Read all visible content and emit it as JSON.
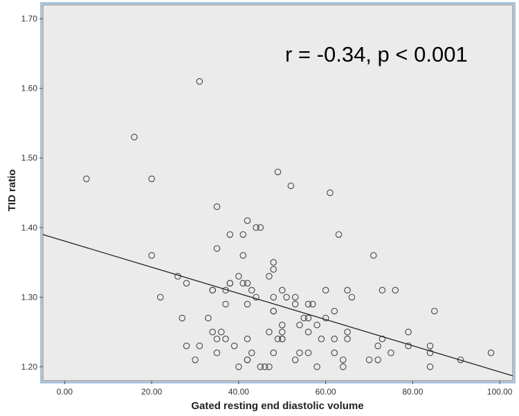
{
  "chart_data": {
    "type": "scatter",
    "title": "",
    "xlabel": "Gated resting end diastolic volume",
    "ylabel": "TID ratio",
    "annotation": "r = -0.34, p < 0.001",
    "xlim": [
      -5,
      103
    ],
    "ylim": [
      1.18,
      1.72
    ],
    "x_ticks": [
      "0.00",
      "20.00",
      "40.00",
      "60.00",
      "80.00",
      "100.00"
    ],
    "y_ticks": [
      "1.20",
      "1.30",
      "1.40",
      "1.50",
      "1.60",
      "1.70"
    ],
    "grid": false,
    "colors": {
      "plot_background": "#ebebeb",
      "frame": "#a8c4de",
      "marker": "#444444",
      "line": "#222222"
    },
    "regression_line": {
      "x": [
        -5,
        103
      ],
      "y": [
        1.39,
        1.187
      ]
    },
    "points": [
      {
        "x": 5,
        "y": 1.47
      },
      {
        "x": 16,
        "y": 1.53
      },
      {
        "x": 20,
        "y": 1.47
      },
      {
        "x": 31,
        "y": 1.61
      },
      {
        "x": 20,
        "y": 1.36
      },
      {
        "x": 22,
        "y": 1.3
      },
      {
        "x": 26,
        "y": 1.33
      },
      {
        "x": 27,
        "y": 1.27
      },
      {
        "x": 28,
        "y": 1.32
      },
      {
        "x": 28,
        "y": 1.23
      },
      {
        "x": 30,
        "y": 1.21
      },
      {
        "x": 31,
        "y": 1.23
      },
      {
        "x": 33,
        "y": 1.27
      },
      {
        "x": 34,
        "y": 1.31
      },
      {
        "x": 34,
        "y": 1.31
      },
      {
        "x": 34,
        "y": 1.25
      },
      {
        "x": 35,
        "y": 1.43
      },
      {
        "x": 35,
        "y": 1.37
      },
      {
        "x": 35,
        "y": 1.24
      },
      {
        "x": 35,
        "y": 1.22
      },
      {
        "x": 36,
        "y": 1.25
      },
      {
        "x": 37,
        "y": 1.31
      },
      {
        "x": 37,
        "y": 1.29
      },
      {
        "x": 37,
        "y": 1.24
      },
      {
        "x": 38,
        "y": 1.39
      },
      {
        "x": 38,
        "y": 1.32
      },
      {
        "x": 38,
        "y": 1.32
      },
      {
        "x": 39,
        "y": 1.23
      },
      {
        "x": 40,
        "y": 1.33
      },
      {
        "x": 40,
        "y": 1.2
      },
      {
        "x": 41,
        "y": 1.39
      },
      {
        "x": 41,
        "y": 1.36
      },
      {
        "x": 41,
        "y": 1.32
      },
      {
        "x": 42,
        "y": 1.41
      },
      {
        "x": 42,
        "y": 1.32
      },
      {
        "x": 42,
        "y": 1.29
      },
      {
        "x": 42,
        "y": 1.24
      },
      {
        "x": 42,
        "y": 1.21
      },
      {
        "x": 42,
        "y": 1.21
      },
      {
        "x": 43,
        "y": 1.31
      },
      {
        "x": 43,
        "y": 1.22
      },
      {
        "x": 44,
        "y": 1.4
      },
      {
        "x": 44,
        "y": 1.3
      },
      {
        "x": 45,
        "y": 1.4
      },
      {
        "x": 45,
        "y": 1.2
      },
      {
        "x": 46,
        "y": 1.2
      },
      {
        "x": 47,
        "y": 1.33
      },
      {
        "x": 47,
        "y": 1.25
      },
      {
        "x": 47,
        "y": 1.2
      },
      {
        "x": 48,
        "y": 1.35
      },
      {
        "x": 48,
        "y": 1.34
      },
      {
        "x": 48,
        "y": 1.3
      },
      {
        "x": 48,
        "y": 1.28
      },
      {
        "x": 48,
        "y": 1.28
      },
      {
        "x": 48,
        "y": 1.22
      },
      {
        "x": 49,
        "y": 1.48
      },
      {
        "x": 49,
        "y": 1.24
      },
      {
        "x": 50,
        "y": 1.31
      },
      {
        "x": 50,
        "y": 1.26
      },
      {
        "x": 50,
        "y": 1.25
      },
      {
        "x": 50,
        "y": 1.24
      },
      {
        "x": 50,
        "y": 1.24
      },
      {
        "x": 51,
        "y": 1.3
      },
      {
        "x": 52,
        "y": 1.46
      },
      {
        "x": 53,
        "y": 1.3
      },
      {
        "x": 53,
        "y": 1.29
      },
      {
        "x": 53,
        "y": 1.21
      },
      {
        "x": 54,
        "y": 1.26
      },
      {
        "x": 54,
        "y": 1.22
      },
      {
        "x": 55,
        "y": 1.27
      },
      {
        "x": 56,
        "y": 1.29
      },
      {
        "x": 56,
        "y": 1.27
      },
      {
        "x": 56,
        "y": 1.25
      },
      {
        "x": 56,
        "y": 1.22
      },
      {
        "x": 57,
        "y": 1.29
      },
      {
        "x": 58,
        "y": 1.26
      },
      {
        "x": 58,
        "y": 1.2
      },
      {
        "x": 59,
        "y": 1.24
      },
      {
        "x": 60,
        "y": 1.31
      },
      {
        "x": 60,
        "y": 1.27
      },
      {
        "x": 61,
        "y": 1.45
      },
      {
        "x": 62,
        "y": 1.28
      },
      {
        "x": 62,
        "y": 1.24
      },
      {
        "x": 62,
        "y": 1.22
      },
      {
        "x": 63,
        "y": 1.39
      },
      {
        "x": 64,
        "y": 1.21
      },
      {
        "x": 64,
        "y": 1.2
      },
      {
        "x": 65,
        "y": 1.31
      },
      {
        "x": 65,
        "y": 1.25
      },
      {
        "x": 65,
        "y": 1.24
      },
      {
        "x": 66,
        "y": 1.3
      },
      {
        "x": 70,
        "y": 1.21
      },
      {
        "x": 71,
        "y": 1.36
      },
      {
        "x": 72,
        "y": 1.23
      },
      {
        "x": 72,
        "y": 1.21
      },
      {
        "x": 73,
        "y": 1.31
      },
      {
        "x": 73,
        "y": 1.24
      },
      {
        "x": 75,
        "y": 1.22
      },
      {
        "x": 76,
        "y": 1.31
      },
      {
        "x": 79,
        "y": 1.25
      },
      {
        "x": 79,
        "y": 1.23
      },
      {
        "x": 84,
        "y": 1.23
      },
      {
        "x": 84,
        "y": 1.22
      },
      {
        "x": 84,
        "y": 1.2
      },
      {
        "x": 85,
        "y": 1.28
      },
      {
        "x": 91,
        "y": 1.21
      },
      {
        "x": 98,
        "y": 1.22
      }
    ]
  }
}
